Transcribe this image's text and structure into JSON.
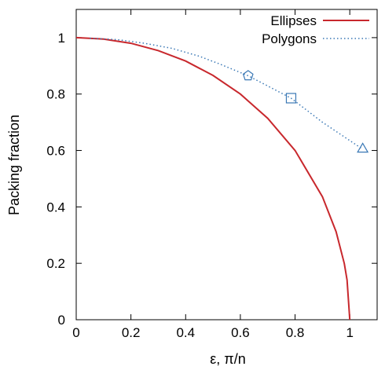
{
  "chart_data": {
    "type": "line",
    "xlabel": "ε, π/n",
    "ylabel": "Packing fraction",
    "xlim": [
      0,
      1.1
    ],
    "ylim": [
      0,
      1.1
    ],
    "x_ticks": [
      "0",
      "0.2",
      "0.4",
      "0.6",
      "0.8",
      "1"
    ],
    "y_ticks": [
      "0",
      "0.2",
      "0.4",
      "0.6",
      "0.8",
      "1"
    ],
    "grid": false,
    "legend_position": "top-right",
    "series": [
      {
        "name": "Ellipses",
        "color": "#c8282d",
        "style": "solid",
        "x": [
          0,
          0.1,
          0.2,
          0.3,
          0.4,
          0.5,
          0.6,
          0.7,
          0.8,
          0.9,
          0.95,
          0.98,
          0.99,
          1.0
        ],
        "y": [
          1.0,
          0.995,
          0.98,
          0.954,
          0.917,
          0.866,
          0.8,
          0.714,
          0.6,
          0.436,
          0.312,
          0.199,
          0.141,
          0.0
        ]
      },
      {
        "name": "Polygons",
        "color": "#3a78b5",
        "style": "dotted",
        "x": [
          0.05,
          0.15,
          0.25,
          0.35,
          0.45,
          0.5236,
          0.6283,
          0.7854,
          0.9,
          1.0472
        ],
        "y": [
          0.998,
          0.993,
          0.98,
          0.962,
          0.934,
          0.9069,
          0.865,
          0.7854,
          0.7,
          0.6046
        ],
        "markers": [
          {
            "x": 0.6283,
            "y": 0.865,
            "shape": "pentagon"
          },
          {
            "x": 0.7854,
            "y": 0.7854,
            "shape": "square"
          },
          {
            "x": 1.0472,
            "y": 0.6046,
            "shape": "triangle"
          }
        ]
      }
    ]
  }
}
